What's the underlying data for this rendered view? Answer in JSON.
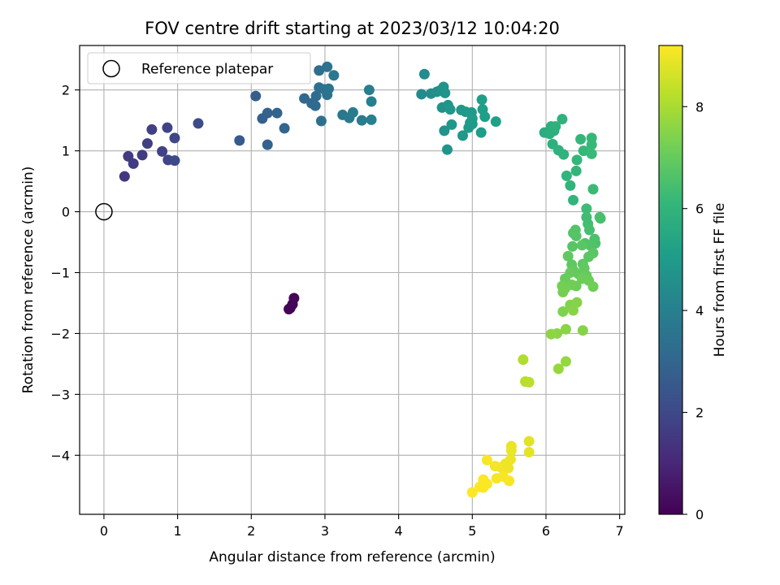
{
  "chart_data": {
    "type": "scatter",
    "title": "FOV centre drift starting at 2023/03/12 10:04:20",
    "xlabel": "Angular distance from reference (arcmin)",
    "ylabel": "Rotation from reference (arcmin)",
    "colorbar_label": "Hours from first FF file",
    "colormap": "viridis",
    "xlim": [
      -0.33,
      7.07
    ],
    "ylim": [
      -4.97,
      2.73
    ],
    "xticks": [
      0,
      1,
      2,
      3,
      4,
      5,
      6,
      7
    ],
    "xtick_labels": [
      "0",
      "1",
      "2",
      "3",
      "4",
      "5",
      "6",
      "7"
    ],
    "yticks": [
      -4,
      -3,
      -2,
      -1,
      0,
      1,
      2
    ],
    "ytick_labels": [
      "−4",
      "−3",
      "−2",
      "−1",
      "0",
      "1",
      "2"
    ],
    "clim": [
      0,
      9.2
    ],
    "cticks": [
      0,
      2,
      4,
      6,
      8
    ],
    "ctick_labels": [
      "0",
      "2",
      "4",
      "6",
      "8"
    ],
    "grid": true,
    "legend": {
      "placement": "top-left",
      "label": "Reference platepar"
    },
    "reference_point": [
      0,
      0
    ],
    "points": [
      [
        2.51,
        -1.6,
        0.05
      ],
      [
        2.53,
        -1.58,
        0.08
      ],
      [
        2.56,
        -1.52,
        0.12
      ],
      [
        2.58,
        -1.42,
        0.15
      ],
      [
        0.28,
        0.58,
        1.5
      ],
      [
        0.33,
        0.91,
        1.55
      ],
      [
        0.4,
        0.79,
        1.6
      ],
      [
        0.52,
        0.93,
        1.65
      ],
      [
        0.59,
        1.12,
        1.7
      ],
      [
        0.65,
        1.35,
        1.75
      ],
      [
        0.79,
        0.99,
        1.8
      ],
      [
        0.86,
        1.38,
        1.85
      ],
      [
        0.87,
        0.85,
        1.9
      ],
      [
        0.96,
        1.21,
        1.95
      ],
      [
        0.96,
        0.84,
        2.0
      ],
      [
        1.28,
        1.45,
        2.1
      ],
      [
        1.84,
        1.17,
        2.6
      ],
      [
        2.06,
        1.9,
        2.7
      ],
      [
        2.15,
        1.53,
        2.8
      ],
      [
        2.22,
        1.62,
        2.85
      ],
      [
        2.22,
        1.1,
        2.9
      ],
      [
        2.35,
        1.62,
        2.95
      ],
      [
        2.45,
        1.37,
        3.0
      ],
      [
        2.72,
        1.86,
        3.1
      ],
      [
        2.82,
        1.78,
        3.15
      ],
      [
        2.87,
        1.74,
        3.2
      ],
      [
        2.88,
        1.9,
        3.25
      ],
      [
        2.92,
        2.32,
        3.3
      ],
      [
        2.92,
        2.04,
        3.35
      ],
      [
        2.95,
        1.49,
        3.4
      ],
      [
        2.99,
        2.01,
        3.45
      ],
      [
        3.03,
        2.38,
        3.5
      ],
      [
        3.03,
        1.92,
        3.55
      ],
      [
        3.05,
        2.02,
        3.6
      ],
      [
        3.12,
        2.24,
        3.65
      ],
      [
        3.24,
        1.59,
        3.7
      ],
      [
        3.33,
        1.54,
        3.75
      ],
      [
        3.38,
        1.63,
        3.8
      ],
      [
        3.5,
        1.5,
        3.85
      ],
      [
        3.6,
        2.0,
        3.9
      ],
      [
        3.63,
        1.81,
        3.95
      ],
      [
        3.63,
        1.51,
        4.0
      ],
      [
        4.31,
        1.93,
        4.4
      ],
      [
        4.35,
        2.26,
        4.45
      ],
      [
        4.44,
        1.94,
        4.5
      ],
      [
        4.52,
        1.97,
        4.55
      ],
      [
        4.56,
        1.99,
        4.6
      ],
      [
        4.59,
        1.71,
        4.65
      ],
      [
        4.61,
        2.05,
        4.7
      ],
      [
        4.62,
        1.33,
        4.72
      ],
      [
        4.63,
        1.95,
        4.75
      ],
      [
        4.66,
        1.02,
        4.78
      ],
      [
        4.67,
        1.75,
        4.8
      ],
      [
        4.7,
        1.68,
        4.82
      ],
      [
        4.72,
        1.43,
        4.85
      ],
      [
        4.85,
        1.67,
        4.88
      ],
      [
        4.87,
        1.25,
        4.9
      ],
      [
        4.91,
        1.64,
        4.92
      ],
      [
        4.95,
        1.38,
        4.95
      ],
      [
        4.97,
        1.46,
        4.98
      ],
      [
        4.99,
        1.63,
        5.0
      ],
      [
        5.0,
        1.53,
        5.02
      ],
      [
        5.0,
        1.44,
        5.05
      ],
      [
        5.12,
        1.3,
        5.08
      ],
      [
        5.13,
        1.84,
        5.1
      ],
      [
        5.14,
        1.68,
        5.12
      ],
      [
        5.17,
        1.56,
        5.15
      ],
      [
        5.32,
        1.48,
        5.2
      ],
      [
        5.98,
        1.3,
        5.7
      ],
      [
        6.05,
        1.28,
        5.75
      ],
      [
        6.07,
        1.4,
        5.78
      ],
      [
        6.09,
        1.11,
        5.8
      ],
      [
        6.11,
        1.33,
        5.82
      ],
      [
        6.13,
        1.4,
        5.85
      ],
      [
        6.17,
        1.01,
        5.88
      ],
      [
        6.22,
        1.52,
        5.9
      ],
      [
        6.24,
        0.94,
        5.92
      ],
      [
        6.28,
        0.59,
        5.95
      ],
      [
        6.33,
        0.43,
        5.98
      ],
      [
        6.37,
        0.19,
        6.0
      ],
      [
        6.41,
        0.67,
        6.05
      ],
      [
        6.42,
        0.85,
        6.08
      ],
      [
        6.47,
        1.19,
        6.1
      ],
      [
        6.51,
        1.0,
        6.12
      ],
      [
        6.62,
        1.21,
        6.15
      ],
      [
        6.62,
        1.1,
        6.18
      ],
      [
        6.62,
        0.95,
        6.2
      ],
      [
        6.64,
        0.37,
        6.25
      ],
      [
        6.55,
        0.05,
        6.3
      ],
      [
        6.55,
        -0.09,
        6.35
      ],
      [
        6.57,
        -0.2,
        6.4
      ],
      [
        6.59,
        -0.3,
        6.45
      ],
      [
        6.73,
        -0.09,
        6.48
      ],
      [
        6.74,
        -0.11,
        6.5
      ],
      [
        6.66,
        -0.45,
        6.55
      ],
      [
        6.67,
        -0.52,
        6.58
      ],
      [
        6.63,
        -0.55,
        6.6
      ],
      [
        6.6,
        -0.55,
        6.62
      ],
      [
        6.53,
        -0.52,
        6.65
      ],
      [
        6.4,
        -0.3,
        6.68
      ],
      [
        6.37,
        -0.35,
        6.7
      ],
      [
        6.41,
        -0.4,
        6.72
      ],
      [
        6.36,
        -0.57,
        6.75
      ],
      [
        6.49,
        -0.55,
        6.78
      ],
      [
        6.64,
        -0.68,
        6.8
      ],
      [
        6.58,
        -0.74,
        6.82
      ],
      [
        6.5,
        -0.86,
        6.85
      ],
      [
        6.35,
        -0.87,
        6.88
      ],
      [
        6.3,
        -0.73,
        6.9
      ],
      [
        6.52,
        -0.93,
        6.92
      ],
      [
        6.37,
        -0.96,
        6.95
      ],
      [
        6.44,
        -1.02,
        6.98
      ],
      [
        6.55,
        -1.05,
        7.0
      ],
      [
        6.33,
        -1.0,
        7.02
      ],
      [
        6.26,
        -1.1,
        7.05
      ],
      [
        6.41,
        -1.22,
        7.08
      ],
      [
        6.49,
        -1.1,
        7.1
      ],
      [
        6.58,
        -1.13,
        7.12
      ],
      [
        6.64,
        -1.23,
        7.15
      ],
      [
        6.35,
        -1.2,
        7.18
      ],
      [
        6.22,
        -1.22,
        7.2
      ],
      [
        6.26,
        -1.26,
        7.22
      ],
      [
        6.23,
        -1.32,
        7.25
      ],
      [
        6.23,
        -1.64,
        7.4
      ],
      [
        6.33,
        -1.53,
        7.45
      ],
      [
        6.42,
        -1.49,
        7.48
      ],
      [
        6.5,
        -1.95,
        7.5
      ],
      [
        6.37,
        -1.62,
        7.52
      ],
      [
        6.27,
        -1.93,
        7.55
      ],
      [
        6.15,
        -2.0,
        7.58
      ],
      [
        6.07,
        -2.01,
        7.6
      ],
      [
        6.27,
        -2.46,
        7.7
      ],
      [
        6.17,
        -2.58,
        7.75
      ],
      [
        5.69,
        -2.43,
        8.1
      ],
      [
        5.72,
        -2.79,
        8.2
      ],
      [
        5.77,
        -2.8,
        8.25
      ],
      [
        5.77,
        -3.77,
        8.8
      ],
      [
        5.77,
        -3.95,
        8.85
      ],
      [
        5.53,
        -3.85,
        8.9
      ],
      [
        5.53,
        -3.92,
        8.92
      ],
      [
        5.52,
        -4.07,
        8.95
      ],
      [
        5.45,
        -4.14,
        8.98
      ],
      [
        5.49,
        -4.21,
        9.0
      ],
      [
        5.39,
        -4.2,
        9.02
      ],
      [
        5.31,
        -4.18,
        9.05
      ],
      [
        5.33,
        -4.38,
        9.08
      ],
      [
        5.42,
        -4.35,
        9.1
      ],
      [
        5.5,
        -4.42,
        9.12
      ],
      [
        5.2,
        -4.08,
        9.14
      ],
      [
        5.2,
        -4.47,
        9.16
      ],
      [
        5.15,
        -4.4,
        9.17
      ],
      [
        5.15,
        -4.53,
        9.18
      ],
      [
        5.1,
        -4.52,
        9.19
      ],
      [
        5.0,
        -4.61,
        9.2
      ]
    ]
  }
}
